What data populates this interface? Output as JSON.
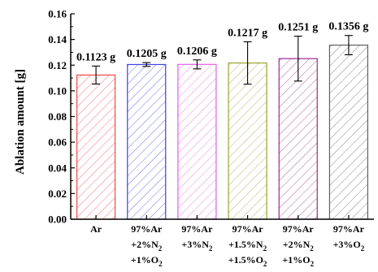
{
  "chart_data": {
    "type": "bar",
    "categories": [
      [
        "Ar"
      ],
      [
        "97%Ar",
        "+2%N",
        "+1%O"
      ],
      [
        "97%Ar",
        "+3%N"
      ],
      [
        "97%Ar",
        "+1.5%N",
        "+1.5%O"
      ],
      [
        "97%Ar",
        "+2%N",
        "+1%O"
      ],
      [
        "97%Ar",
        "+3%O"
      ]
    ],
    "category_subscripts": [
      [
        ""
      ],
      [
        "",
        "2",
        "2"
      ],
      [
        "",
        "2"
      ],
      [
        "",
        "2",
        "2"
      ],
      [
        "",
        "2",
        "2"
      ],
      [
        "",
        "2"
      ]
    ],
    "values": [
      0.1123,
      0.1205,
      0.1206,
      0.1217,
      0.1251,
      0.1356
    ],
    "errors": [
      0.007,
      0.0015,
      0.0035,
      0.0165,
      0.0175,
      0.0075
    ],
    "data_labels": [
      "0.1123 g",
      "0.1205 g",
      "0.1206 g",
      "0.1217 g",
      "0.1251 g",
      "0.1356 g"
    ],
    "bar_colors": [
      "#f04848",
      "#4040e0",
      "#e060e0",
      "#a0a030",
      "#a02890",
      "#606060"
    ],
    "ylabel": "Ablation amount [g]",
    "xlabel": "",
    "title": "",
    "ylim": [
      0.0,
      0.16
    ],
    "yticks": [
      "0.00",
      "0.02",
      "0.04",
      "0.06",
      "0.08",
      "0.10",
      "0.12",
      "0.14",
      "0.16"
    ],
    "grid": false
  }
}
